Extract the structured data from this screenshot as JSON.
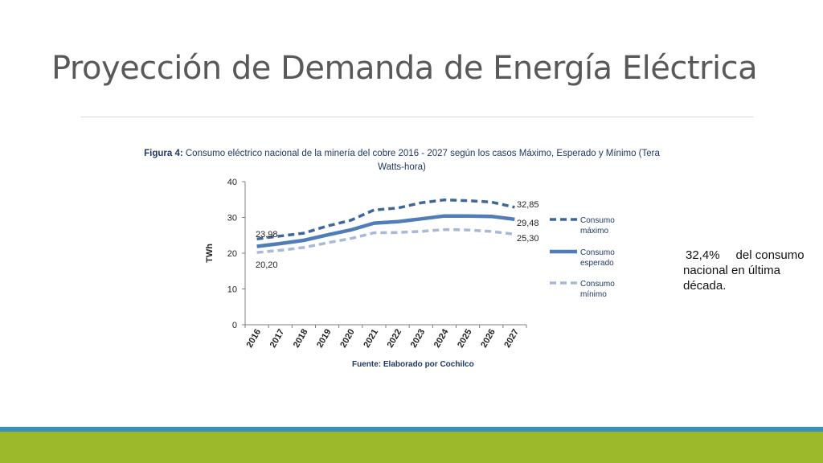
{
  "slide": {
    "title": "Proyección de Demanda de Energía Eléctrica",
    "note_percent": "32,4%",
    "note_rest": "del consumo nacional en última década."
  },
  "chart_data": {
    "type": "line",
    "title_prefix": "Figura 4:",
    "title": "Consumo eléctrico nacional de la minería del cobre 2016 - 2027 según los casos Máximo, Esperado y Mínimo (Tera Watts-hora)",
    "ylabel": "TWh",
    "xlabel": "",
    "source_prefix": "Fuente:",
    "source": "Elaborado por Cochilco",
    "ylim": [
      0,
      40
    ],
    "yticks": [
      0,
      10,
      20,
      30,
      40
    ],
    "grid": false,
    "legend_position": "right",
    "x": [
      "2016",
      "2017",
      "2018",
      "2019",
      "2020",
      "2021",
      "2022",
      "2023",
      "2024",
      "2025",
      "2026",
      "2027"
    ],
    "series": [
      {
        "name": "Consumo máximo",
        "legend_lines": [
          "Consumo",
          "máximo"
        ],
        "style": "dashed",
        "color": "#3c6797",
        "values": [
          23.98,
          24.8,
          25.6,
          27.6,
          29.2,
          32.1,
          32.6,
          34.1,
          34.9,
          34.7,
          34.3,
          32.85
        ],
        "labels": {
          "start": "23,98",
          "end": "32,85"
        }
      },
      {
        "name": "Consumo esperado",
        "legend_lines": [
          "Consumo",
          "esperado"
        ],
        "style": "solid",
        "color": "#4f7db8",
        "values": [
          21.9,
          22.7,
          23.6,
          25.1,
          26.5,
          28.4,
          28.8,
          29.6,
          30.4,
          30.4,
          30.3,
          29.48
        ],
        "labels": {
          "end": "29,48"
        }
      },
      {
        "name": "Consumo mínimo",
        "legend_lines": [
          "Consumo",
          "mínimo"
        ],
        "style": "dashed",
        "color": "#a7b9d6",
        "values": [
          20.2,
          20.8,
          21.6,
          22.9,
          24.1,
          25.7,
          25.8,
          26.1,
          26.6,
          26.5,
          26.1,
          25.3
        ],
        "labels": {
          "start": "20,20",
          "end": "25,30"
        }
      }
    ]
  },
  "colors": {
    "title_text": "#595959",
    "caption_text": "#1f3864",
    "band_blue": "#3a8fc1",
    "band_green": "#9cb92c"
  }
}
